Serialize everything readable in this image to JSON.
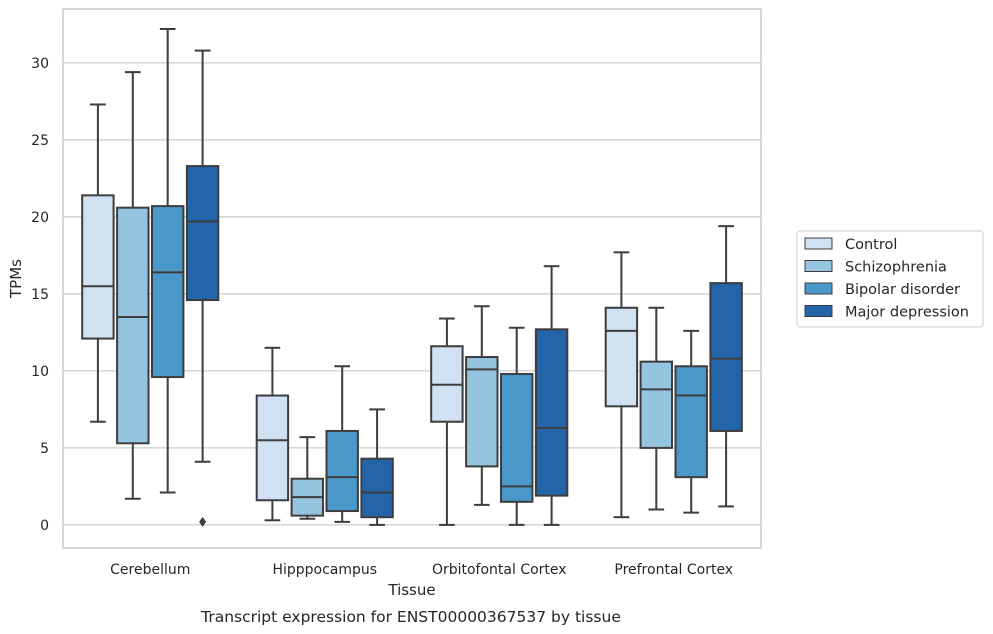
{
  "chart_data": {
    "type": "box",
    "title": "",
    "xlabel": "Tissue",
    "ylabel": "TPMs",
    "caption": "Transcript expression for ENST00000367537 by tissue",
    "ylim": [
      -1.5,
      33.5
    ],
    "yticks": [
      0,
      5,
      10,
      15,
      20,
      25,
      30
    ],
    "grid": "horizontal",
    "legend_position": "right",
    "categories": [
      "Cerebellum",
      "Hipppocampus",
      "Orbitofontal Cortex",
      "Prefrontal Cortex"
    ],
    "series": [
      {
        "name": "Control",
        "color": "#d0e1f2",
        "boxes": [
          {
            "whisker_low": 6.7,
            "q1": 12.1,
            "median": 15.5,
            "q3": 21.4,
            "whisker_high": 27.3,
            "outliers": []
          },
          {
            "whisker_low": 0.3,
            "q1": 1.6,
            "median": 5.5,
            "q3": 8.4,
            "whisker_high": 11.5,
            "outliers": []
          },
          {
            "whisker_low": 0.0,
            "q1": 6.7,
            "median": 9.1,
            "q3": 11.6,
            "whisker_high": 13.4,
            "outliers": []
          },
          {
            "whisker_low": 0.5,
            "q1": 7.7,
            "median": 12.6,
            "q3": 14.1,
            "whisker_high": 17.7,
            "outliers": []
          }
        ]
      },
      {
        "name": "Schizophrenia",
        "color": "#94c4df",
        "boxes": [
          {
            "whisker_low": 1.7,
            "q1": 5.3,
            "median": 13.5,
            "q3": 20.6,
            "whisker_high": 29.4,
            "outliers": []
          },
          {
            "whisker_low": 0.4,
            "q1": 0.6,
            "median": 1.8,
            "q3": 3.0,
            "whisker_high": 5.7,
            "outliers": []
          },
          {
            "whisker_low": 1.3,
            "q1": 3.8,
            "median": 10.1,
            "q3": 10.9,
            "whisker_high": 14.2,
            "outliers": []
          },
          {
            "whisker_low": 1.0,
            "q1": 5.0,
            "median": 8.8,
            "q3": 10.6,
            "whisker_high": 14.1,
            "outliers": []
          }
        ]
      },
      {
        "name": "Bipolar disorder",
        "color": "#4a98c9",
        "boxes": [
          {
            "whisker_low": 2.1,
            "q1": 9.6,
            "median": 16.4,
            "q3": 20.7,
            "whisker_high": 32.2,
            "outliers": []
          },
          {
            "whisker_low": 0.2,
            "q1": 0.9,
            "median": 3.1,
            "q3": 6.1,
            "whisker_high": 10.3,
            "outliers": []
          },
          {
            "whisker_low": 0.0,
            "q1": 1.5,
            "median": 2.5,
            "q3": 9.8,
            "whisker_high": 12.8,
            "outliers": []
          },
          {
            "whisker_low": 0.8,
            "q1": 3.1,
            "median": 8.4,
            "q3": 10.3,
            "whisker_high": 12.6,
            "outliers": []
          }
        ]
      },
      {
        "name": "Major depression",
        "color": "#2464a8",
        "boxes": [
          {
            "whisker_low": 4.1,
            "q1": 14.6,
            "median": 19.7,
            "q3": 23.3,
            "whisker_high": 30.8,
            "outliers": [
              0.2
            ]
          },
          {
            "whisker_low": 0.0,
            "q1": 0.5,
            "median": 2.1,
            "q3": 4.3,
            "whisker_high": 7.5,
            "outliers": []
          },
          {
            "whisker_low": 0.0,
            "q1": 1.9,
            "median": 6.3,
            "q3": 12.7,
            "whisker_high": 16.8,
            "outliers": []
          },
          {
            "whisker_low": 1.2,
            "q1": 6.1,
            "median": 10.8,
            "q3": 15.7,
            "whisker_high": 19.4,
            "outliers": []
          }
        ]
      }
    ]
  }
}
